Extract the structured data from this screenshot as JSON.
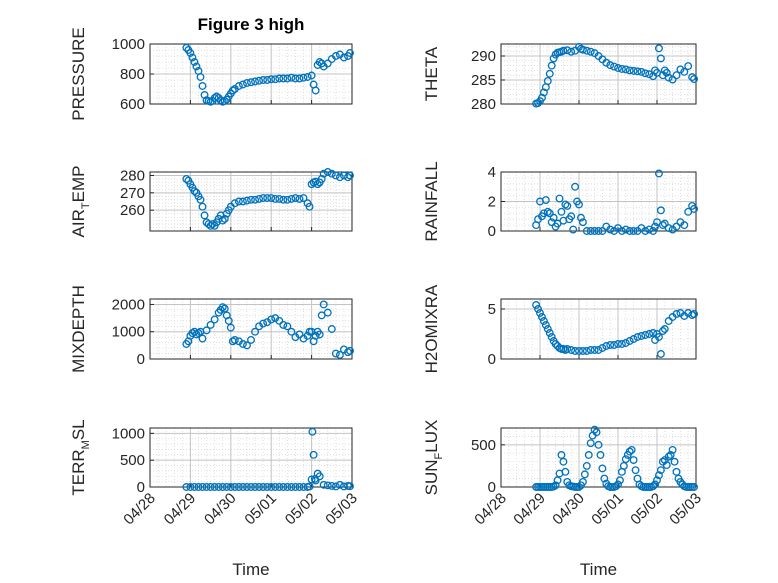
{
  "figure": {
    "title": "Figure 3 high",
    "background": "#ffffff",
    "marker_color": "#0072BD"
  },
  "chart_data": [
    {
      "type": "scatter",
      "id": "pressure",
      "ylabel": "PRESSURE",
      "ylim": [
        600,
        1000
      ],
      "yticks": [
        600,
        800,
        1000
      ],
      "xlim": [
        0,
        5
      ],
      "x": [
        0.9,
        0.95,
        1,
        1.05,
        1.1,
        1.15,
        1.2,
        1.25,
        1.3,
        1.35,
        1.4,
        1.45,
        1.5,
        1.55,
        1.6,
        1.65,
        1.7,
        1.75,
        1.8,
        1.85,
        1.9,
        1.95,
        2,
        2.05,
        2.1,
        2.2,
        2.3,
        2.4,
        2.5,
        2.6,
        2.7,
        2.8,
        2.9,
        3,
        3.1,
        3.2,
        3.3,
        3.4,
        3.5,
        3.6,
        3.7,
        3.8,
        3.9,
        4,
        4.05,
        4.1,
        4.15,
        4.2,
        4.25,
        4.3,
        4.4,
        4.5,
        4.6,
        4.7,
        4.8,
        4.9,
        4.95
      ],
      "y": [
        975,
        960,
        940,
        910,
        880,
        850,
        820,
        780,
        720,
        660,
        625,
        620,
        615,
        620,
        640,
        650,
        640,
        625,
        615,
        620,
        630,
        650,
        670,
        690,
        700,
        720,
        730,
        740,
        745,
        750,
        755,
        760,
        760,
        765,
        765,
        770,
        770,
        770,
        775,
        770,
        770,
        775,
        780,
        790,
        730,
        690,
        860,
        880,
        870,
        850,
        870,
        900,
        920,
        930,
        910,
        920,
        940
      ]
    },
    {
      "type": "scatter",
      "id": "theta",
      "ylabel": "THETA",
      "ylim": [
        280,
        292.5
      ],
      "yticks": [
        280,
        285,
        290
      ],
      "xlim": [
        0,
        5
      ],
      "x": [
        0.9,
        0.95,
        1,
        1.05,
        1.1,
        1.15,
        1.2,
        1.25,
        1.3,
        1.35,
        1.4,
        1.45,
        1.5,
        1.55,
        1.6,
        1.7,
        1.8,
        1.9,
        2,
        2.05,
        2.1,
        2.2,
        2.3,
        2.4,
        2.5,
        2.6,
        2.7,
        2.8,
        2.9,
        3,
        3.1,
        3.2,
        3.3,
        3.4,
        3.5,
        3.6,
        3.7,
        3.8,
        3.9,
        3.95,
        4,
        4.05,
        4.1,
        4.15,
        4.2,
        4.25,
        4.3,
        4.4,
        4.5,
        4.6,
        4.7,
        4.8,
        4.9,
        4.95
      ],
      "y": [
        280.1,
        280.2,
        280.6,
        281.3,
        282.4,
        283.5,
        284.8,
        286.3,
        288,
        289.5,
        290.3,
        290.7,
        290.8,
        290.9,
        291.1,
        291.2,
        290.9,
        291.1,
        291.9,
        291.5,
        291.3,
        291.1,
        290.9,
        290.6,
        290,
        289.3,
        288.6,
        288.1,
        287.8,
        287.5,
        287.3,
        287.2,
        287.0,
        286.9,
        286.8,
        286.7,
        286.4,
        286.2,
        285.8,
        287,
        286.5,
        291.6,
        289.5,
        286,
        287,
        286.5,
        285.5,
        285.1,
        286,
        287.2,
        286.7,
        287.9,
        285.6,
        285.2
      ]
    },
    {
      "type": "scatter",
      "id": "air_temp",
      "ylabel": "AIR",
      "ylabel_sub": "T",
      "ylabel_rest": "EMP",
      "ylim": [
        248,
        282
      ],
      "yticks": [
        260,
        270,
        280
      ],
      "xlim": [
        0,
        5
      ],
      "x": [
        0.9,
        0.95,
        1,
        1.05,
        1.1,
        1.15,
        1.2,
        1.25,
        1.3,
        1.35,
        1.4,
        1.45,
        1.5,
        1.55,
        1.6,
        1.65,
        1.7,
        1.75,
        1.8,
        1.85,
        1.9,
        1.95,
        2,
        2.1,
        2.2,
        2.3,
        2.4,
        2.5,
        2.6,
        2.7,
        2.8,
        2.9,
        3,
        3.1,
        3.2,
        3.3,
        3.4,
        3.5,
        3.6,
        3.7,
        3.8,
        3.9,
        3.95,
        4,
        4.05,
        4.1,
        4.15,
        4.2,
        4.25,
        4.3,
        4.4,
        4.5,
        4.6,
        4.7,
        4.8,
        4.9,
        4.95
      ],
      "y": [
        278,
        277,
        275,
        273,
        271,
        270,
        268,
        266,
        262,
        257,
        253,
        252,
        251,
        252,
        251,
        253,
        255,
        257,
        254,
        255,
        258,
        260,
        262,
        264,
        265,
        265,
        265.5,
        266,
        266,
        266.5,
        267,
        267,
        267,
        266.5,
        266.5,
        266,
        266,
        266.5,
        267,
        266.5,
        267,
        264,
        262,
        275,
        276,
        276.5,
        275,
        276,
        278,
        281,
        282,
        281,
        280,
        279,
        280,
        279,
        280
      ]
    },
    {
      "type": "scatter",
      "id": "rainfall",
      "ylabel": "RAINFALL",
      "ylim": [
        0,
        4
      ],
      "yticks": [
        0,
        2,
        4
      ],
      "xlim": [
        0,
        5
      ],
      "x": [
        0.9,
        0.95,
        1,
        1.05,
        1.1,
        1.15,
        1.2,
        1.25,
        1.3,
        1.35,
        1.4,
        1.45,
        1.5,
        1.55,
        1.6,
        1.65,
        1.7,
        1.75,
        1.8,
        1.85,
        1.9,
        1.95,
        2,
        2.05,
        2.1,
        2.2,
        2.3,
        2.4,
        2.5,
        2.6,
        2.7,
        2.8,
        2.9,
        3,
        3.1,
        3.2,
        3.3,
        3.4,
        3.5,
        3.6,
        3.7,
        3.8,
        3.9,
        3.95,
        4,
        4.05,
        4.1,
        4.15,
        4.2,
        4.3,
        4.4,
        4.5,
        4.6,
        4.7,
        4.8,
        4.9,
        4.95
      ],
      "y": [
        0.4,
        0.8,
        2.0,
        1.0,
        1.2,
        2.1,
        1.3,
        1.2,
        0.6,
        0.9,
        0.3,
        0.5,
        2.2,
        1.3,
        0.7,
        1.8,
        1.7,
        0.8,
        1.0,
        0.1,
        3.0,
        2.0,
        1.8,
        0.9,
        0.6,
        0.0,
        0.0,
        0.0,
        0.0,
        0.0,
        0.3,
        0.1,
        0.0,
        0.2,
        0.0,
        0.1,
        0.0,
        0.0,
        0.0,
        0.2,
        0.0,
        0.1,
        0.0,
        0.3,
        0.6,
        3.9,
        1.4,
        0.4,
        0.5,
        0.2,
        0.1,
        0.3,
        0.6,
        0.4,
        1.3,
        1.7,
        1.5
      ]
    },
    {
      "type": "scatter",
      "id": "mixdepth",
      "ylabel": "MIXDEPTH",
      "ylim": [
        0,
        2200
      ],
      "yticks": [
        0,
        1000,
        2000
      ],
      "xlim": [
        0,
        5
      ],
      "x": [
        0.9,
        0.95,
        1,
        1.05,
        1.1,
        1.15,
        1.2,
        1.25,
        1.3,
        1.4,
        1.5,
        1.6,
        1.7,
        1.75,
        1.8,
        1.85,
        1.9,
        1.95,
        2,
        2.05,
        2.1,
        2.2,
        2.3,
        2.4,
        2.5,
        2.6,
        2.7,
        2.8,
        2.9,
        3,
        3.1,
        3.2,
        3.3,
        3.4,
        3.5,
        3.6,
        3.7,
        3.8,
        3.9,
        3.95,
        4,
        4.05,
        4.1,
        4.15,
        4.2,
        4.25,
        4.3,
        4.4,
        4.5,
        4.6,
        4.7,
        4.8,
        4.9,
        4.95
      ],
      "y": [
        550,
        650,
        850,
        950,
        1000,
        900,
        950,
        1000,
        750,
        1050,
        1250,
        1450,
        1700,
        1800,
        1900,
        1850,
        1600,
        1400,
        1150,
        650,
        700,
        650,
        550,
        500,
        700,
        1000,
        1200,
        1300,
        1350,
        1450,
        1500,
        1400,
        1250,
        1200,
        1000,
        800,
        900,
        750,
        850,
        1000,
        1000,
        650,
        850,
        1000,
        900,
        1600,
        2000,
        1700,
        1100,
        200,
        150,
        350,
        250,
        300
      ]
    },
    {
      "type": "scatter",
      "id": "h2omixra",
      "ylabel": "H2OMIXRA",
      "ylim": [
        0,
        6
      ],
      "yticks": [
        0,
        5
      ],
      "xlim": [
        0,
        5
      ],
      "x": [
        0.9,
        0.95,
        1,
        1.05,
        1.1,
        1.15,
        1.2,
        1.25,
        1.3,
        1.35,
        1.4,
        1.45,
        1.5,
        1.55,
        1.6,
        1.65,
        1.7,
        1.8,
        1.9,
        2,
        2.1,
        2.2,
        2.3,
        2.4,
        2.5,
        2.6,
        2.7,
        2.8,
        2.9,
        3,
        3.1,
        3.2,
        3.3,
        3.4,
        3.5,
        3.6,
        3.7,
        3.8,
        3.9,
        3.95,
        4,
        4.05,
        4.1,
        4.15,
        4.2,
        4.3,
        4.4,
        4.5,
        4.6,
        4.7,
        4.8,
        4.9,
        4.95
      ],
      "y": [
        5.4,
        5.0,
        4.6,
        4.2,
        3.8,
        3.4,
        3.0,
        2.6,
        2.2,
        1.8,
        1.5,
        1.3,
        1.1,
        1.0,
        1.0,
        0.9,
        1.0,
        0.9,
        0.8,
        0.8,
        0.8,
        0.8,
        0.9,
        0.9,
        0.9,
        1.1,
        1.3,
        1.4,
        1.4,
        1.5,
        1.5,
        1.6,
        1.8,
        2.0,
        2.2,
        2.3,
        2.4,
        2.5,
        2.6,
        1.9,
        2.5,
        2.2,
        0.5,
        2.8,
        3.0,
        3.8,
        4.2,
        4.5,
        4.6,
        4.3,
        4.6,
        4.4,
        4.5
      ]
    },
    {
      "type": "scatter",
      "id": "terr_msl",
      "ylabel": "TERR",
      "ylabel_sub": "M",
      "ylabel_rest": "SL",
      "ylim": [
        0,
        1100
      ],
      "yticks": [
        0,
        500,
        1000
      ],
      "xlim": [
        0,
        5
      ],
      "xticks": [
        0,
        1,
        2,
        3,
        4,
        5
      ],
      "xticklabels": [
        "04/28",
        "04/29",
        "04/30",
        "05/01",
        "05/02",
        "05/03"
      ],
      "xlabel": "Time",
      "x": [
        0.9,
        1,
        1.1,
        1.2,
        1.3,
        1.4,
        1.5,
        1.6,
        1.7,
        1.8,
        1.9,
        2,
        2.1,
        2.2,
        2.3,
        2.4,
        2.5,
        2.6,
        2.7,
        2.8,
        2.9,
        3,
        3.1,
        3.2,
        3.3,
        3.4,
        3.5,
        3.6,
        3.7,
        3.8,
        3.9,
        3.95,
        4,
        4.02,
        4.05,
        4.08,
        4.1,
        4.15,
        4.2,
        4.3,
        4.4,
        4.5,
        4.6,
        4.7,
        4.8,
        4.9,
        4.95
      ],
      "y": [
        0,
        0,
        0,
        0,
        0,
        0,
        0,
        0,
        0,
        0,
        0,
        0,
        0,
        0,
        0,
        0,
        0,
        0,
        0,
        0,
        0,
        0,
        0,
        0,
        0,
        0,
        0,
        0,
        0,
        0,
        0,
        10,
        140,
        1030,
        600,
        150,
        120,
        250,
        200,
        40,
        30,
        20,
        10,
        40,
        10,
        20,
        15
      ]
    },
    {
      "type": "scatter",
      "id": "sun_flux",
      "ylabel": "SUN",
      "ylabel_sub": "F",
      "ylabel_rest": "LUX",
      "ylim": [
        0,
        700
      ],
      "yticks": [
        0,
        500
      ],
      "xlim": [
        0,
        5
      ],
      "xticks": [
        0,
        1,
        2,
        3,
        4,
        5
      ],
      "xticklabels": [
        "04/28",
        "04/29",
        "04/30",
        "05/01",
        "05/02",
        "05/03"
      ],
      "xlabel": "Time",
      "x": [
        0.9,
        0.95,
        1,
        1.05,
        1.1,
        1.15,
        1.2,
        1.25,
        1.3,
        1.35,
        1.4,
        1.45,
        1.5,
        1.55,
        1.6,
        1.65,
        1.7,
        1.75,
        1.8,
        1.85,
        1.9,
        1.95,
        2,
        2.05,
        2.1,
        2.15,
        2.2,
        2.25,
        2.3,
        2.35,
        2.4,
        2.45,
        2.5,
        2.55,
        2.6,
        2.65,
        2.7,
        2.75,
        2.8,
        2.85,
        2.9,
        2.95,
        3,
        3.05,
        3.1,
        3.15,
        3.2,
        3.25,
        3.3,
        3.35,
        3.4,
        3.45,
        3.5,
        3.55,
        3.6,
        3.65,
        3.7,
        3.75,
        3.8,
        3.85,
        3.9,
        3.95,
        4,
        4.05,
        4.1,
        4.15,
        4.2,
        4.25,
        4.3,
        4.35,
        4.4,
        4.45,
        4.5,
        4.55,
        4.6,
        4.65,
        4.7,
        4.75,
        4.8,
        4.85,
        4.9,
        4.95
      ],
      "y": [
        0,
        0,
        0,
        0,
        0,
        0,
        0,
        0,
        0,
        5,
        20,
        80,
        160,
        380,
        300,
        180,
        60,
        20,
        10,
        5,
        0,
        0,
        0,
        20,
        60,
        150,
        250,
        380,
        520,
        610,
        680,
        650,
        500,
        380,
        220,
        100,
        40,
        10,
        0,
        0,
        0,
        10,
        30,
        80,
        180,
        250,
        330,
        380,
        420,
        440,
        320,
        200,
        100,
        30,
        10,
        0,
        0,
        0,
        0,
        0,
        10,
        30,
        80,
        140,
        200,
        300,
        320,
        260,
        360,
        380,
        440,
        300,
        180,
        100,
        60,
        30,
        10,
        0,
        0,
        0,
        0,
        0
      ]
    }
  ]
}
